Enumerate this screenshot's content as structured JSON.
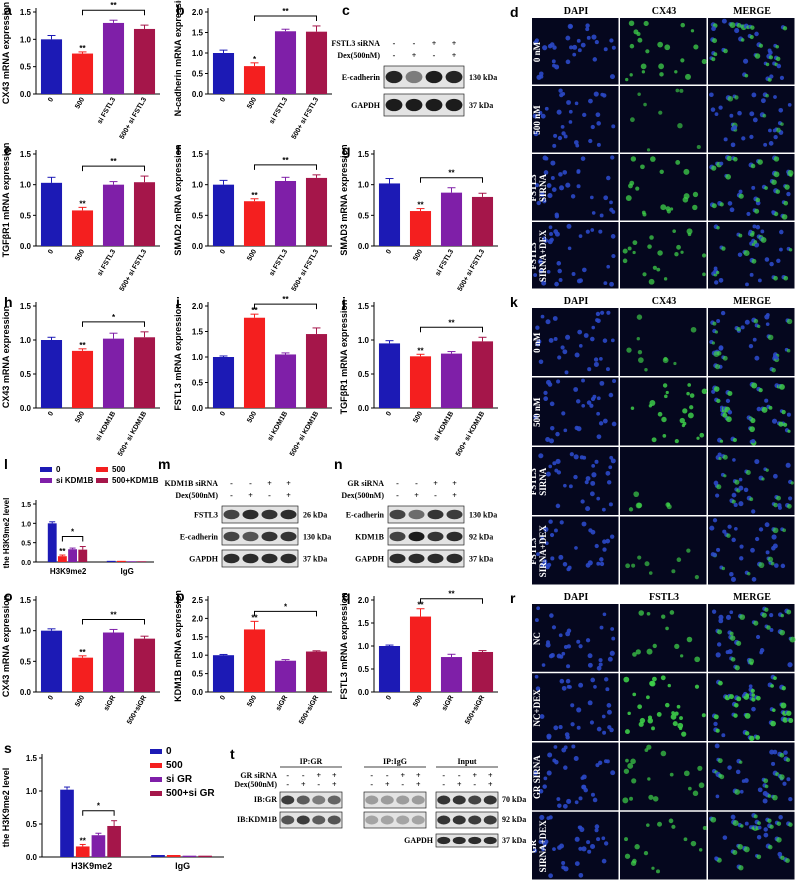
{
  "panel_labels": {
    "a": "a",
    "b": "b",
    "c": "c",
    "d": "d",
    "e": "e",
    "f": "f",
    "g": "g",
    "h": "h",
    "i": "i",
    "j": "j",
    "k": "k",
    "l": "l",
    "m": "m",
    "n": "n",
    "o": "o",
    "p": "p",
    "q": "q",
    "r": "r",
    "s": "s",
    "t": "t"
  },
  "colors": {
    "blue": "#1c1ab5",
    "red": "#f41f1f",
    "purple": "#7f1fa8",
    "maroon": "#a5164a",
    "micro_bg": "#05071e",
    "nuclei": "#2b49c8",
    "green": "#3ed04a"
  },
  "chart_data": [
    {
      "id": "a",
      "type": "bar",
      "ylabel": "CX43 mRNA expression",
      "categories": [
        "0",
        "500",
        "si FSTL3",
        "500+ si FSTL3"
      ],
      "values": [
        1.0,
        0.74,
        1.3,
        1.19
      ],
      "errors": [
        0.07,
        0.03,
        0.05,
        0.07
      ],
      "ylim": [
        0,
        1.5
      ],
      "yticks": [
        "0.0",
        "0.5",
        "1.0",
        "1.5"
      ],
      "stars": [
        "",
        "**",
        "",
        ""
      ],
      "bracket": {
        "from": 1,
        "to": 3,
        "label": "**"
      }
    },
    {
      "id": "b",
      "type": "bar",
      "ylabel": "N-cadherin mRNA expression",
      "categories": [
        "0",
        "500",
        "si FSTL3",
        "500+ si FSTL3"
      ],
      "values": [
        1.0,
        0.68,
        1.53,
        1.52
      ],
      "errors": [
        0.07,
        0.08,
        0.05,
        0.14
      ],
      "ylim": [
        0,
        2.0
      ],
      "yticks": [
        "0.0",
        "0.5",
        "1.0",
        "1.5",
        "2.0"
      ],
      "stars": [
        "",
        "*",
        "",
        ""
      ],
      "bracket": {
        "from": 1,
        "to": 3,
        "label": "**"
      }
    },
    {
      "id": "e",
      "type": "bar",
      "ylabel": "TGFβR1 mRNA expression",
      "categories": [
        "0",
        "500",
        "si FSTL3",
        "500+ si FSTL3"
      ],
      "values": [
        1.03,
        0.58,
        1.0,
        1.04
      ],
      "errors": [
        0.09,
        0.05,
        0.05,
        0.1
      ],
      "ylim": [
        0,
        1.5
      ],
      "yticks": [
        "0.0",
        "0.5",
        "1.0",
        "1.5"
      ],
      "stars": [
        "",
        "**",
        "",
        ""
      ],
      "bracket": {
        "from": 1,
        "to": 3,
        "label": "**"
      }
    },
    {
      "id": "f",
      "type": "bar",
      "ylabel": "SMAD2 mRNA expression",
      "categories": [
        "0",
        "500",
        "si FSTL3",
        "500+ si FSTL3"
      ],
      "values": [
        1.0,
        0.73,
        1.06,
        1.11
      ],
      "errors": [
        0.07,
        0.04,
        0.06,
        0.05
      ],
      "ylim": [
        0,
        1.5
      ],
      "yticks": [
        "0.0",
        "0.5",
        "1.0",
        "1.5"
      ],
      "stars": [
        "",
        "**",
        "",
        ""
      ],
      "bracket": {
        "from": 1,
        "to": 3,
        "label": "**"
      }
    },
    {
      "id": "g",
      "type": "bar",
      "ylabel": "SMAD3 mRNA expression",
      "categories": [
        "0",
        "500",
        "si FSTL3",
        "500+ si FSTL3"
      ],
      "values": [
        1.02,
        0.57,
        0.87,
        0.8
      ],
      "errors": [
        0.08,
        0.04,
        0.08,
        0.06
      ],
      "ylim": [
        0,
        1.5
      ],
      "yticks": [
        "0.0",
        "0.5",
        "1.0",
        "1.5"
      ],
      "stars": [
        "",
        "**",
        "",
        ""
      ],
      "bracket": {
        "from": 1,
        "to": 3,
        "label": "**"
      }
    },
    {
      "id": "h",
      "type": "bar",
      "ylabel": "CX43 mRNA expression",
      "categories": [
        "0",
        "500",
        "si KDM1B",
        "500+ si KDM1B"
      ],
      "values": [
        1.0,
        0.84,
        1.02,
        1.04
      ],
      "errors": [
        0.04,
        0.03,
        0.08,
        0.08
      ],
      "ylim": [
        0,
        1.5
      ],
      "yticks": [
        "0.0",
        "0.5",
        "1.0",
        "1.5"
      ],
      "stars": [
        "",
        "**",
        "",
        ""
      ],
      "bracket": {
        "from": 1,
        "to": 3,
        "label": "*"
      }
    },
    {
      "id": "i",
      "type": "bar",
      "ylabel": "FSTL3 mRNA expression",
      "categories": [
        "0",
        "500",
        "si KDM1B",
        "500+ si KDM1B"
      ],
      "values": [
        1.0,
        1.77,
        1.05,
        1.45
      ],
      "errors": [
        0.02,
        0.07,
        0.03,
        0.12
      ],
      "ylim": [
        0,
        2.0
      ],
      "yticks": [
        "0.0",
        "0.5",
        "1.0",
        "1.5",
        "2.0"
      ],
      "stars": [
        "",
        "**",
        "",
        ""
      ],
      "bracket": {
        "from": 1,
        "to": 3,
        "label": "**"
      }
    },
    {
      "id": "j",
      "type": "bar",
      "ylabel": "TGFβR1 mRNA expression",
      "categories": [
        "0",
        "500",
        "si KDM1B",
        "500+ si KDM1B"
      ],
      "values": [
        0.95,
        0.76,
        0.8,
        0.98
      ],
      "errors": [
        0.04,
        0.03,
        0.03,
        0.06
      ],
      "ylim": [
        0,
        1.5
      ],
      "yticks": [
        "0.0",
        "0.5",
        "1.0",
        "1.5"
      ],
      "stars": [
        "",
        "**",
        "",
        ""
      ],
      "bracket": {
        "from": 1,
        "to": 3,
        "label": "**"
      }
    },
    {
      "id": "o",
      "type": "bar",
      "ylabel": "CX43 mRNA expression",
      "categories": [
        "0",
        "500",
        "siGR",
        "500+siGR"
      ],
      "values": [
        1.0,
        0.56,
        0.97,
        0.87
      ],
      "errors": [
        0.03,
        0.03,
        0.05,
        0.04
      ],
      "ylim": [
        0,
        1.5
      ],
      "yticks": [
        "0.0",
        "0.5",
        "1.0",
        "1.5"
      ],
      "stars": [
        "",
        "**",
        "",
        ""
      ],
      "bracket": {
        "from": 1,
        "to": 3,
        "label": "**"
      }
    },
    {
      "id": "p",
      "type": "bar",
      "ylabel": "KDM1B mRNA expression",
      "categories": [
        "0",
        "500",
        "siGR",
        "500+siGR"
      ],
      "values": [
        1.0,
        1.7,
        0.85,
        1.1
      ],
      "errors": [
        0.02,
        0.22,
        0.03,
        0.02
      ],
      "ylim": [
        0,
        2.5
      ],
      "yticks": [
        "0.0",
        "0.5",
        "1.0",
        "1.5",
        "2.0",
        "2.5"
      ],
      "stars": [
        "",
        "**",
        "",
        ""
      ],
      "bracket": {
        "from": 1,
        "to": 3,
        "label": "*"
      }
    },
    {
      "id": "q",
      "type": "bar",
      "ylabel": "FSTL3 mRNA expression",
      "categories": [
        "0",
        "500",
        "siGR",
        "500+siGR"
      ],
      "values": [
        1.0,
        1.64,
        0.76,
        0.87
      ],
      "errors": [
        0.02,
        0.17,
        0.06,
        0.03
      ],
      "ylim": [
        0,
        2.0
      ],
      "yticks": [
        "0.0",
        "0.5",
        "1.0",
        "1.5",
        "2.0"
      ],
      "stars": [
        "",
        "**",
        "",
        ""
      ],
      "bracket": {
        "from": 1,
        "to": 3,
        "label": "**"
      }
    },
    {
      "id": "l",
      "type": "grouped-bar",
      "ylabel": "the H3K9me2 level",
      "categories": [
        "H3K9me2",
        "IgG"
      ],
      "series": [
        {
          "name": "0",
          "values": [
            1.0,
            0.03
          ]
        },
        {
          "name": "500",
          "values": [
            0.15,
            0.03
          ]
        },
        {
          "name": "si KDM1B",
          "values": [
            0.33,
            0.02
          ]
        },
        {
          "name": "500+KDM1B",
          "values": [
            0.32,
            0.02
          ]
        }
      ],
      "ylim": [
        0,
        1.5
      ],
      "yticks": [
        "0.0",
        "0.5",
        "1.0",
        "1.5"
      ],
      "legend": "top"
    },
    {
      "id": "s",
      "type": "grouped-bar",
      "ylabel": "the H3K9me2 level",
      "categories": [
        "H3K9me2",
        "IgG"
      ],
      "series": [
        {
          "name": "0",
          "values": [
            1.02,
            0.03
          ]
        },
        {
          "name": "500",
          "values": [
            0.16,
            0.03
          ]
        },
        {
          "name": "si GR",
          "values": [
            0.33,
            0.02
          ]
        },
        {
          "name": "500+si GR",
          "values": [
            0.47,
            0.02
          ]
        }
      ],
      "ylim": [
        0,
        1.5
      ],
      "yticks": [
        "0.0",
        "0.5",
        "1.0",
        "1.5"
      ],
      "legend": "top-right"
    }
  ],
  "blots": {
    "c": {
      "rows": [
        "FSTL3 siRNA",
        "Dex(500nM)"
      ],
      "signs": [
        [
          "-",
          "-",
          "+",
          "+"
        ],
        [
          "-",
          "+",
          "-",
          "+"
        ]
      ],
      "bands": [
        "E-cadherin",
        "GAPDH"
      ],
      "sizes": [
        "130 kDa",
        "37 kDa"
      ]
    },
    "m": {
      "rows": [
        "KDM1B siRNA",
        "Dex(500nM)"
      ],
      "signs": [
        [
          "-",
          "-",
          "+",
          "+"
        ],
        [
          "-",
          "+",
          "-",
          "+"
        ]
      ],
      "bands": [
        "FSTL3",
        "E-cadherin",
        "GAPDH"
      ],
      "sizes": [
        "26 kDa",
        "130 kDa",
        "37 kDa"
      ]
    },
    "n": {
      "rows": [
        "GR siRNA",
        "Dex(500nM)"
      ],
      "signs": [
        [
          "-",
          "-",
          "+",
          "+"
        ],
        [
          "-",
          "+",
          "-",
          "+"
        ]
      ],
      "bands": [
        "E-cadherin",
        "KDM1B",
        "GAPDH"
      ],
      "sizes": [
        "130 kDa",
        "92 kDa",
        "37 kDa"
      ]
    },
    "t": {
      "groups": [
        "IP:GR",
        "IP:IgG",
        "Input"
      ],
      "rows": [
        "GR siRNA",
        "Dex(500nM)"
      ],
      "signs": [
        [
          "-",
          "-",
          "+",
          "+"
        ],
        [
          "-",
          "+",
          "-",
          "+"
        ]
      ],
      "bands": [
        "IB:GR",
        "IB:KDM1B"
      ],
      "extra_band": "GAPDH",
      "sizes": [
        "70 kDa",
        "92 kDa",
        "37 kDa"
      ]
    }
  },
  "micro": {
    "d": {
      "headers": [
        "DAPI",
        "CX43",
        "MERGE"
      ],
      "rows": [
        "0 nM",
        "500 nM",
        "FSTL3 SIRNA",
        "FSTL3 SIRNA+DEX"
      ]
    },
    "k": {
      "headers": [
        "DAPI",
        "CX43",
        "MERGE"
      ],
      "rows": [
        "0 nM",
        "500 nM",
        "FSTL3 SIRNA",
        "FSTL3 SIRNA+DEX"
      ]
    },
    "r": {
      "headers": [
        "DAPI",
        "FSTL3",
        "MERGE"
      ],
      "rows": [
        "NC",
        "NC+DEX",
        "GR SIRNA",
        "GR SIRNA+DEX"
      ]
    }
  }
}
